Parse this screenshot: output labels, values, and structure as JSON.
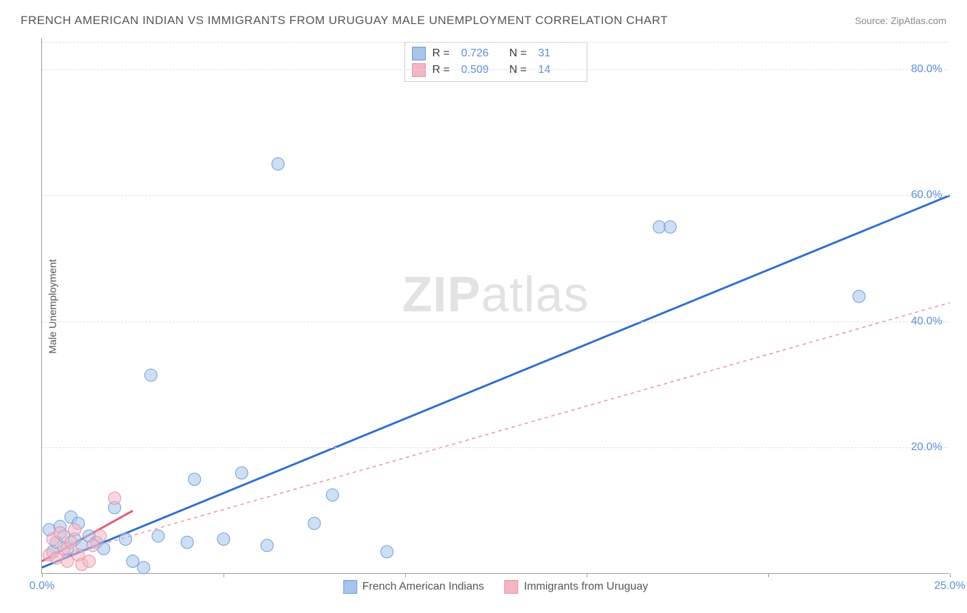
{
  "title": "FRENCH AMERICAN INDIAN VS IMMIGRANTS FROM URUGUAY MALE UNEMPLOYMENT CORRELATION CHART",
  "source_label": "Source: ",
  "source_name": "ZipAtlas.com",
  "ylabel": "Male Unemployment",
  "watermark_bold": "ZIP",
  "watermark_rest": "atlas",
  "chart": {
    "type": "scatter",
    "background_color": "#ffffff",
    "grid_color": "#dddddd",
    "axis_color": "#999999",
    "tick_label_color": "#5b8dd6",
    "xlim": [
      0,
      25
    ],
    "ylim": [
      0,
      85
    ],
    "xticks": [
      0,
      5,
      10,
      15,
      20,
      25
    ],
    "xtick_labels": [
      "0.0%",
      "",
      "",
      "",
      "",
      "25.0%"
    ],
    "yticks": [
      20,
      40,
      60,
      80
    ],
    "ytick_labels": [
      "20.0%",
      "40.0%",
      "60.0%",
      "80.0%"
    ],
    "marker_radius": 9,
    "marker_opacity": 0.55,
    "series": [
      {
        "name": "French American Indians",
        "color_fill": "#a7c4ea",
        "color_stroke": "#6a9bd8",
        "r_value": "0.726",
        "n_value": "31",
        "trendline": {
          "x1": 0,
          "y1": 1.0,
          "x2": 25,
          "y2": 60.0,
          "stroke": "#2f6fd0",
          "stroke_width": 3,
          "dash": "none"
        },
        "points": [
          [
            0.2,
            7.0
          ],
          [
            0.3,
            3.5
          ],
          [
            0.4,
            5.0
          ],
          [
            0.5,
            7.5
          ],
          [
            0.6,
            6.0
          ],
          [
            0.7,
            4.0
          ],
          [
            0.8,
            9.0
          ],
          [
            0.9,
            5.5
          ],
          [
            1.0,
            8.0
          ],
          [
            1.1,
            4.5
          ],
          [
            1.3,
            6.0
          ],
          [
            1.5,
            5.0
          ],
          [
            1.7,
            4.0
          ],
          [
            2.0,
            10.5
          ],
          [
            2.3,
            5.5
          ],
          [
            2.5,
            2.0
          ],
          [
            2.8,
            1.0
          ],
          [
            3.0,
            31.5
          ],
          [
            3.2,
            6.0
          ],
          [
            4.0,
            5.0
          ],
          [
            4.2,
            15.0
          ],
          [
            5.0,
            5.5
          ],
          [
            5.5,
            16.0
          ],
          [
            6.2,
            4.5
          ],
          [
            6.5,
            65.0
          ],
          [
            7.5,
            8.0
          ],
          [
            8.0,
            12.5
          ],
          [
            9.5,
            3.5
          ],
          [
            17.0,
            55.0
          ],
          [
            17.3,
            55.0
          ],
          [
            22.5,
            44.0
          ]
        ]
      },
      {
        "name": "Immigrants from Uruguay",
        "color_fill": "#f4b6c4",
        "color_stroke": "#e98fa6",
        "r_value": "0.509",
        "n_value": "14",
        "trendline": {
          "x1": 0,
          "y1": 2.0,
          "x2": 25,
          "y2": 43.0,
          "stroke": "#e98fa6",
          "stroke_width": 1.5,
          "dash": "5,5"
        },
        "trendline_solid": {
          "x1": 0,
          "y1": 2.0,
          "x2": 2.5,
          "y2": 10.0,
          "stroke": "#e05a7d",
          "stroke_width": 3
        },
        "points": [
          [
            0.2,
            3.0
          ],
          [
            0.3,
            5.5
          ],
          [
            0.4,
            2.5
          ],
          [
            0.5,
            6.5
          ],
          [
            0.6,
            4.0
          ],
          [
            0.7,
            2.0
          ],
          [
            0.8,
            5.0
          ],
          [
            0.9,
            7.0
          ],
          [
            1.0,
            3.0
          ],
          [
            1.1,
            1.5
          ],
          [
            1.3,
            2.0
          ],
          [
            1.6,
            6.0
          ],
          [
            2.0,
            12.0
          ],
          [
            1.4,
            4.5
          ]
        ]
      }
    ]
  },
  "legend_top": {
    "r_label": "R =",
    "n_label": "N ="
  },
  "legend_bottom": [
    {
      "swatch_fill": "#a7c4ea",
      "swatch_stroke": "#6a9bd8",
      "label": "French American Indians"
    },
    {
      "swatch_fill": "#f4b6c4",
      "swatch_stroke": "#e98fa6",
      "label": "Immigrants from Uruguay"
    }
  ]
}
